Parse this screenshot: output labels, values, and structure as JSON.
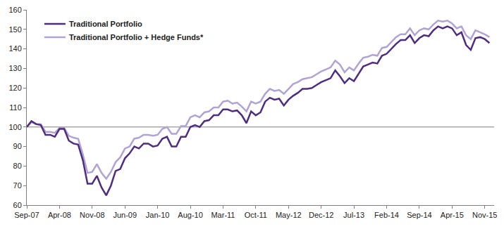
{
  "chart_data": {
    "type": "line",
    "categories": [
      "Sep-07",
      null,
      null,
      null,
      null,
      null,
      null,
      "Apr-08",
      null,
      null,
      null,
      null,
      null,
      null,
      "Nov-08",
      null,
      null,
      null,
      null,
      null,
      null,
      "Jun-09",
      null,
      null,
      null,
      null,
      null,
      null,
      "Jan-10",
      null,
      null,
      null,
      null,
      null,
      null,
      "Aug-10",
      null,
      null,
      null,
      null,
      null,
      null,
      "Mar-11",
      null,
      null,
      null,
      null,
      null,
      null,
      "Oct-11",
      null,
      null,
      null,
      null,
      null,
      null,
      "May-12",
      null,
      null,
      null,
      null,
      null,
      null,
      "Dec-12",
      null,
      null,
      null,
      null,
      null,
      null,
      "Jul-13",
      null,
      null,
      null,
      null,
      null,
      null,
      "Feb-14",
      null,
      null,
      null,
      null,
      null,
      null,
      "Sep-14",
      null,
      null,
      null,
      null,
      null,
      null,
      "Apr-15",
      null,
      null,
      null,
      null,
      null,
      null,
      "Nov-15",
      null
    ],
    "series": [
      {
        "name": "Traditional Portfolio",
        "color": "#4f2d7f",
        "values": [
          100,
          103,
          101.5,
          101,
          96,
          96,
          95,
          99,
          99,
          93,
          91.5,
          91,
          83,
          71,
          71,
          75,
          69,
          65,
          70,
          77.5,
          78.5,
          84,
          86.5,
          90,
          89,
          91.5,
          91.5,
          90,
          90.5,
          94,
          95,
          90,
          90,
          95,
          95,
          100,
          101,
          100,
          103,
          103.5,
          106,
          106,
          109,
          109,
          108,
          108.5,
          106,
          102,
          108,
          106,
          107.5,
          113,
          115,
          114,
          114.5,
          111,
          114,
          116,
          117.5,
          119.5,
          119.5,
          120,
          121.5,
          123,
          124,
          125,
          129,
          126,
          122.5,
          125,
          123.5,
          127.5,
          131,
          132,
          133,
          132.5,
          136.5,
          137.5,
          140,
          142.5,
          144.5,
          144.5,
          147,
          143,
          145.5,
          147,
          146.5,
          149.5,
          151.5,
          150.5,
          151.5,
          150.5,
          147,
          148.5,
          142,
          139.5,
          145.5,
          146,
          145,
          143
        ]
      },
      {
        "name": "Traditional Portfolio + Hedge Funds*",
        "color": "#b1a3d3",
        "values": [
          100,
          102.5,
          101.5,
          101.5,
          97.5,
          97.5,
          97,
          99.5,
          99.5,
          95.5,
          94.5,
          94,
          86,
          76.5,
          77,
          81,
          76.5,
          73.5,
          77,
          82,
          84.5,
          89,
          90,
          94,
          94.5,
          96,
          96,
          95.5,
          96,
          99,
          100,
          96.5,
          96.5,
          100.5,
          100.5,
          105,
          106,
          105,
          107.5,
          108,
          110,
          110,
          113,
          113.5,
          112,
          112.5,
          110.5,
          108,
          113,
          112,
          113,
          117,
          119.5,
          118.5,
          119,
          117,
          119.5,
          122,
          123,
          124.5,
          125,
          125.5,
          127,
          128.5,
          129.5,
          130.5,
          134,
          132,
          128,
          130.5,
          129,
          132.5,
          135.5,
          136,
          137,
          136.5,
          140.5,
          141,
          143.5,
          146,
          147.5,
          147.5,
          150.5,
          147,
          149.5,
          150.5,
          150,
          152.5,
          154.5,
          154,
          154.5,
          153,
          150.5,
          151.5,
          147,
          145,
          149.5,
          148.5,
          147.5,
          146
        ]
      }
    ],
    "reference_line": 100,
    "ylim": [
      60,
      160
    ],
    "yticks": [
      60,
      70,
      80,
      90,
      100,
      110,
      120,
      130,
      140,
      150,
      160
    ],
    "grid": false,
    "legend": "top left"
  }
}
